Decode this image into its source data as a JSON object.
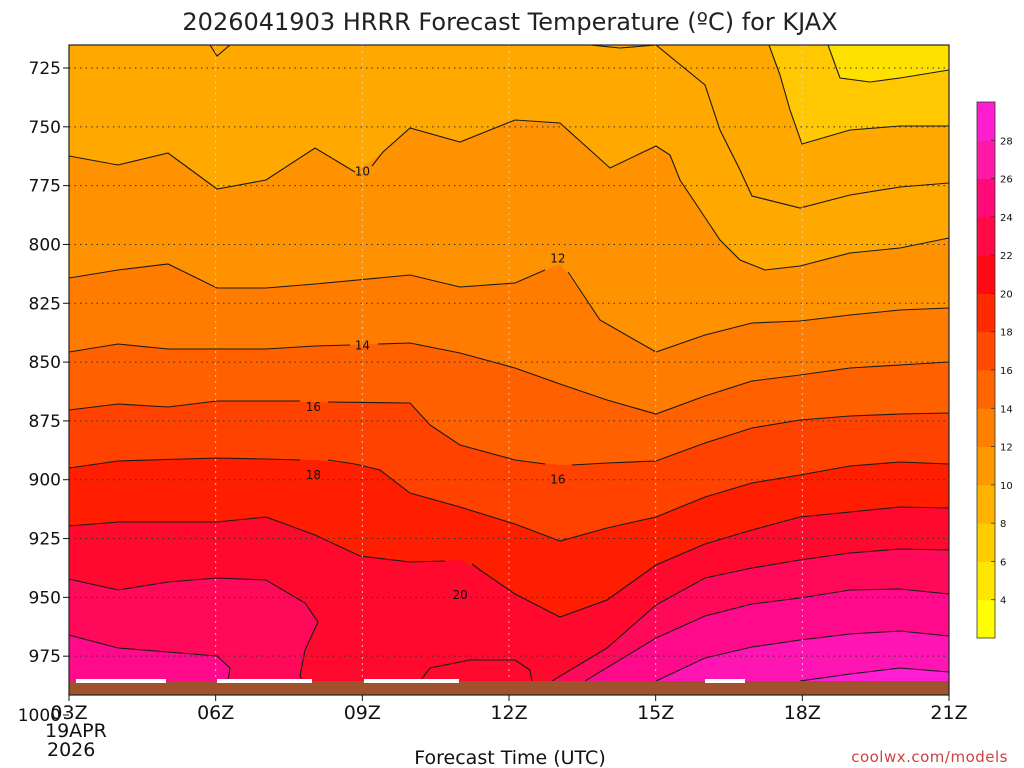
{
  "chart_data": {
    "type": "contour",
    "title": "2026041903 HRRR Forecast Temperature (ºC) for KJAX",
    "xlabel": "Forecast Time (UTC)",
    "x_ticks": [
      "03Z",
      "06Z",
      "09Z",
      "12Z",
      "15Z",
      "18Z",
      "21Z"
    ],
    "x_date_line1": "19APR",
    "x_date_line2": "2026",
    "y_ticks": [
      "725",
      "750",
      "775",
      "800",
      "825",
      "850",
      "875",
      "900",
      "925",
      "950",
      "975",
      "1000"
    ],
    "y_values": [
      725,
      750,
      775,
      800,
      825,
      850,
      875,
      900,
      925,
      950,
      975,
      1000
    ],
    "ylim": [
      1012,
      711
    ],
    "xlim_hours": [
      0,
      18
    ],
    "contour_levels": [
      4,
      6,
      8,
      10,
      12,
      14,
      16,
      18,
      20,
      22,
      24,
      26,
      28
    ],
    "colorbar_labels": [
      "4",
      "6",
      "8",
      "10",
      "12",
      "14",
      "16",
      "18",
      "20",
      "22",
      "24",
      "26",
      "28"
    ],
    "colorbar_colors": [
      "#ffff00",
      "#ffe600",
      "#ffcc00",
      "#ffb300",
      "#ff9900",
      "#ff8000",
      "#ff6600",
      "#ff4a00",
      "#ff2b00",
      "#ff0a14",
      "#ff0a46",
      "#ff0a78",
      "#ff1aa5",
      "#ff1ecf"
    ],
    "contour_labels": [
      {
        "text": "10",
        "hour": 6.0,
        "level": 769
      },
      {
        "text": "12",
        "hour": 10.0,
        "level": 806
      },
      {
        "text": "14",
        "hour": 6.0,
        "level": 843
      },
      {
        "text": "16",
        "hour": 5.0,
        "level": 869
      },
      {
        "text": "18",
        "hour": 5.0,
        "level": 898
      },
      {
        "text": "16",
        "hour": 10.0,
        "level": 900
      },
      {
        "text": "20",
        "hour": 8.0,
        "level": 949
      }
    ],
    "credit": "coolwx.com/models"
  }
}
